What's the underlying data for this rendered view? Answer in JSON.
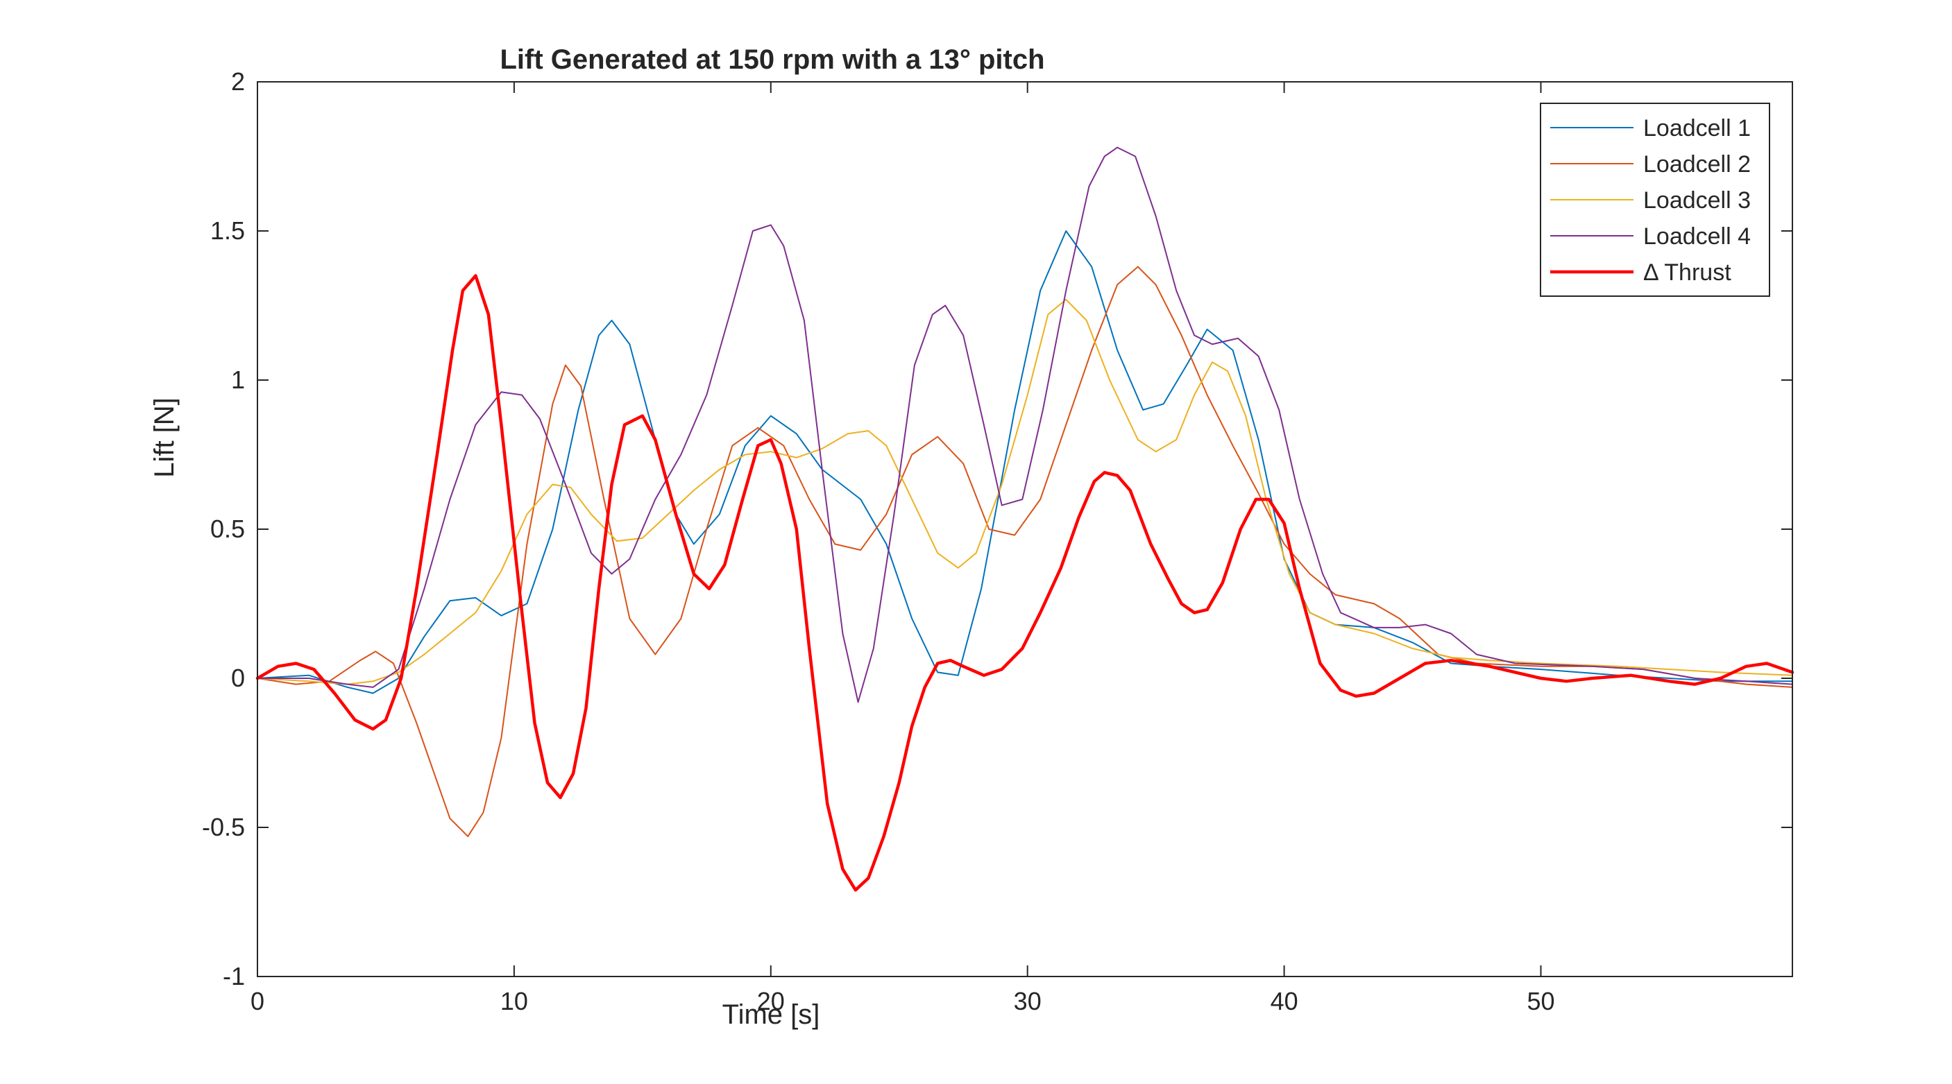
{
  "chart_data": {
    "type": "line",
    "title": "Lift Generated at 150 rpm with a 13° pitch",
    "xlabel": "Time [s]",
    "ylabel": "Lift [N]",
    "xlim": [
      0,
      59.8
    ],
    "ylim": [
      -1,
      2
    ],
    "xticks": [
      0,
      10,
      20,
      30,
      40,
      50
    ],
    "yticks": [
      -1,
      -0.5,
      0,
      0.5,
      1,
      1.5,
      2
    ],
    "xtick_labels": [
      "0",
      "10",
      "20",
      "30",
      "40",
      "50"
    ],
    "ytick_labels": [
      "-1",
      "-0.5",
      "0",
      "0.5",
      "1",
      "1.5",
      "2"
    ],
    "grid": false,
    "legend_position": "top-right",
    "series": [
      {
        "name": "Loadcell 1",
        "color": "#0072BD",
        "width": 2,
        "points": [
          [
            0,
            0
          ],
          [
            2,
            0.01
          ],
          [
            3.5,
            -0.03
          ],
          [
            4.5,
            -0.05
          ],
          [
            5.5,
            0.0
          ],
          [
            6.5,
            0.14
          ],
          [
            7.5,
            0.26
          ],
          [
            8.5,
            0.27
          ],
          [
            9.5,
            0.21
          ],
          [
            10.5,
            0.25
          ],
          [
            11.5,
            0.5
          ],
          [
            12.5,
            0.9
          ],
          [
            13.3,
            1.15
          ],
          [
            13.8,
            1.2
          ],
          [
            14.5,
            1.12
          ],
          [
            15.5,
            0.8
          ],
          [
            16.3,
            0.55
          ],
          [
            17,
            0.45
          ],
          [
            18,
            0.55
          ],
          [
            19,
            0.78
          ],
          [
            20,
            0.88
          ],
          [
            21,
            0.82
          ],
          [
            22,
            0.7
          ],
          [
            23.5,
            0.6
          ],
          [
            24.5,
            0.45
          ],
          [
            25.5,
            0.2
          ],
          [
            26.5,
            0.02
          ],
          [
            27.3,
            0.01
          ],
          [
            28.2,
            0.3
          ],
          [
            29.5,
            0.9
          ],
          [
            30.5,
            1.3
          ],
          [
            31.5,
            1.5
          ],
          [
            32.5,
            1.38
          ],
          [
            33.5,
            1.1
          ],
          [
            34.5,
            0.9
          ],
          [
            35.3,
            0.92
          ],
          [
            36.2,
            1.05
          ],
          [
            37,
            1.17
          ],
          [
            38,
            1.1
          ],
          [
            39,
            0.8
          ],
          [
            40,
            0.4
          ],
          [
            41,
            0.22
          ],
          [
            42,
            0.18
          ],
          [
            43.5,
            0.17
          ],
          [
            45,
            0.12
          ],
          [
            46.5,
            0.05
          ],
          [
            48,
            0.04
          ],
          [
            50,
            0.03
          ],
          [
            53,
            0.01
          ],
          [
            55,
            0.0
          ],
          [
            57,
            -0.01
          ],
          [
            59.8,
            -0.01
          ]
        ]
      },
      {
        "name": "Loadcell 2",
        "color": "#D95319",
        "width": 2,
        "points": [
          [
            0,
            0
          ],
          [
            1.5,
            -0.02
          ],
          [
            2.8,
            -0.01
          ],
          [
            4,
            0.06
          ],
          [
            4.6,
            0.09
          ],
          [
            5.3,
            0.05
          ],
          [
            6.2,
            -0.15
          ],
          [
            7.5,
            -0.47
          ],
          [
            8.2,
            -0.53
          ],
          [
            8.8,
            -0.45
          ],
          [
            9.5,
            -0.2
          ],
          [
            10.5,
            0.45
          ],
          [
            11.5,
            0.92
          ],
          [
            12,
            1.05
          ],
          [
            12.6,
            0.98
          ],
          [
            13.5,
            0.6
          ],
          [
            14.5,
            0.2
          ],
          [
            15.5,
            0.08
          ],
          [
            16.5,
            0.2
          ],
          [
            17.5,
            0.5
          ],
          [
            18.5,
            0.78
          ],
          [
            19.5,
            0.84
          ],
          [
            20.5,
            0.78
          ],
          [
            21.5,
            0.6
          ],
          [
            22.5,
            0.45
          ],
          [
            23.5,
            0.43
          ],
          [
            24.5,
            0.55
          ],
          [
            25.5,
            0.75
          ],
          [
            26.5,
            0.81
          ],
          [
            27.5,
            0.72
          ],
          [
            28.5,
            0.5
          ],
          [
            29.5,
            0.48
          ],
          [
            30.5,
            0.6
          ],
          [
            31.5,
            0.85
          ],
          [
            32.5,
            1.1
          ],
          [
            33.5,
            1.32
          ],
          [
            34.3,
            1.38
          ],
          [
            35,
            1.32
          ],
          [
            36,
            1.15
          ],
          [
            37,
            0.95
          ],
          [
            38,
            0.78
          ],
          [
            39,
            0.62
          ],
          [
            40,
            0.45
          ],
          [
            41,
            0.35
          ],
          [
            42,
            0.28
          ],
          [
            43.5,
            0.25
          ],
          [
            44.5,
            0.2
          ],
          [
            46,
            0.08
          ],
          [
            47.5,
            0.05
          ],
          [
            50,
            0.04
          ],
          [
            52,
            0.04
          ],
          [
            54,
            0.03
          ],
          [
            56,
            0.0
          ],
          [
            58,
            -0.02
          ],
          [
            59.8,
            -0.03
          ]
        ]
      },
      {
        "name": "Loadcell 3",
        "color": "#EDB120",
        "width": 2,
        "points": [
          [
            0,
            0
          ],
          [
            2,
            -0.01
          ],
          [
            3.5,
            -0.02
          ],
          [
            4.5,
            -0.01
          ],
          [
            5.5,
            0.02
          ],
          [
            6.5,
            0.08
          ],
          [
            7.5,
            0.15
          ],
          [
            8.5,
            0.22
          ],
          [
            9.5,
            0.36
          ],
          [
            10.5,
            0.55
          ],
          [
            11.5,
            0.65
          ],
          [
            12.2,
            0.64
          ],
          [
            13,
            0.55
          ],
          [
            14,
            0.46
          ],
          [
            15,
            0.47
          ],
          [
            16,
            0.55
          ],
          [
            17,
            0.63
          ],
          [
            18,
            0.7
          ],
          [
            19,
            0.75
          ],
          [
            20,
            0.76
          ],
          [
            21,
            0.74
          ],
          [
            22,
            0.77
          ],
          [
            23,
            0.82
          ],
          [
            23.8,
            0.83
          ],
          [
            24.5,
            0.78
          ],
          [
            25.5,
            0.6
          ],
          [
            26.5,
            0.42
          ],
          [
            27.3,
            0.37
          ],
          [
            28,
            0.42
          ],
          [
            29,
            0.65
          ],
          [
            30,
            0.95
          ],
          [
            30.8,
            1.22
          ],
          [
            31.5,
            1.27
          ],
          [
            32.3,
            1.2
          ],
          [
            33.2,
            1.0
          ],
          [
            34.3,
            0.8
          ],
          [
            35,
            0.76
          ],
          [
            35.8,
            0.8
          ],
          [
            36.5,
            0.95
          ],
          [
            37.2,
            1.06
          ],
          [
            37.8,
            1.03
          ],
          [
            38.5,
            0.88
          ],
          [
            39.3,
            0.6
          ],
          [
            40.2,
            0.35
          ],
          [
            41,
            0.22
          ],
          [
            42,
            0.18
          ],
          [
            43.5,
            0.15
          ],
          [
            45,
            0.1
          ],
          [
            46.5,
            0.07
          ],
          [
            48,
            0.06
          ],
          [
            50,
            0.05
          ],
          [
            53,
            0.04
          ],
          [
            55,
            0.03
          ],
          [
            57,
            0.02
          ],
          [
            59.8,
            0.01
          ]
        ]
      },
      {
        "name": "Loadcell 4",
        "color": "#7E2F8E",
        "width": 2,
        "points": [
          [
            0,
            0
          ],
          [
            2,
            0.0
          ],
          [
            3.5,
            -0.02
          ],
          [
            4.5,
            -0.03
          ],
          [
            5.5,
            0.03
          ],
          [
            6.5,
            0.3
          ],
          [
            7.5,
            0.6
          ],
          [
            8.5,
            0.85
          ],
          [
            9.5,
            0.96
          ],
          [
            10.3,
            0.95
          ],
          [
            11,
            0.87
          ],
          [
            12,
            0.65
          ],
          [
            13,
            0.42
          ],
          [
            13.8,
            0.35
          ],
          [
            14.5,
            0.4
          ],
          [
            15.5,
            0.6
          ],
          [
            16.5,
            0.75
          ],
          [
            17.5,
            0.95
          ],
          [
            18.5,
            1.25
          ],
          [
            19.3,
            1.5
          ],
          [
            20,
            1.52
          ],
          [
            20.5,
            1.45
          ],
          [
            21.3,
            1.2
          ],
          [
            22,
            0.7
          ],
          [
            22.8,
            0.15
          ],
          [
            23.4,
            -0.08
          ],
          [
            24,
            0.1
          ],
          [
            24.8,
            0.55
          ],
          [
            25.6,
            1.05
          ],
          [
            26.3,
            1.22
          ],
          [
            26.8,
            1.25
          ],
          [
            27.5,
            1.15
          ],
          [
            28.3,
            0.85
          ],
          [
            29,
            0.58
          ],
          [
            29.8,
            0.6
          ],
          [
            30.6,
            0.9
          ],
          [
            31.5,
            1.3
          ],
          [
            32.4,
            1.65
          ],
          [
            33,
            1.75
          ],
          [
            33.5,
            1.78
          ],
          [
            34.2,
            1.75
          ],
          [
            35,
            1.55
          ],
          [
            35.8,
            1.3
          ],
          [
            36.5,
            1.15
          ],
          [
            37.2,
            1.12
          ],
          [
            38.2,
            1.14
          ],
          [
            39,
            1.08
          ],
          [
            39.8,
            0.9
          ],
          [
            40.6,
            0.6
          ],
          [
            41.5,
            0.35
          ],
          [
            42.2,
            0.22
          ],
          [
            43.5,
            0.17
          ],
          [
            44.5,
            0.17
          ],
          [
            45.5,
            0.18
          ],
          [
            46.5,
            0.15
          ],
          [
            47.5,
            0.08
          ],
          [
            49,
            0.05
          ],
          [
            52,
            0.04
          ],
          [
            54,
            0.03
          ],
          [
            56,
            0.0
          ],
          [
            58,
            -0.01
          ],
          [
            59.8,
            -0.02
          ]
        ]
      },
      {
        "name": "Δ Thrust",
        "color": "#FF0000",
        "width": 4.5,
        "points": [
          [
            0,
            0
          ],
          [
            0.8,
            0.04
          ],
          [
            1.5,
            0.05
          ],
          [
            2.2,
            0.03
          ],
          [
            3,
            -0.05
          ],
          [
            3.8,
            -0.14
          ],
          [
            4.5,
            -0.17
          ],
          [
            5,
            -0.14
          ],
          [
            5.6,
            0.0
          ],
          [
            6.2,
            0.3
          ],
          [
            7,
            0.75
          ],
          [
            7.6,
            1.1
          ],
          [
            8,
            1.3
          ],
          [
            8.5,
            1.35
          ],
          [
            9,
            1.22
          ],
          [
            9.5,
            0.85
          ],
          [
            10.2,
            0.3
          ],
          [
            10.8,
            -0.15
          ],
          [
            11.3,
            -0.35
          ],
          [
            11.8,
            -0.4
          ],
          [
            12.3,
            -0.32
          ],
          [
            12.8,
            -0.1
          ],
          [
            13.3,
            0.3
          ],
          [
            13.8,
            0.65
          ],
          [
            14.3,
            0.85
          ],
          [
            15,
            0.88
          ],
          [
            15.5,
            0.8
          ],
          [
            16.3,
            0.55
          ],
          [
            17,
            0.35
          ],
          [
            17.6,
            0.3
          ],
          [
            18.2,
            0.38
          ],
          [
            18.9,
            0.6
          ],
          [
            19.5,
            0.78
          ],
          [
            20,
            0.8
          ],
          [
            20.4,
            0.72
          ],
          [
            21,
            0.5
          ],
          [
            21.5,
            0.1
          ],
          [
            22.2,
            -0.42
          ],
          [
            22.8,
            -0.64
          ],
          [
            23.3,
            -0.71
          ],
          [
            23.8,
            -0.67
          ],
          [
            24.4,
            -0.53
          ],
          [
            25,
            -0.35
          ],
          [
            25.5,
            -0.16
          ],
          [
            26,
            -0.03
          ],
          [
            26.5,
            0.05
          ],
          [
            27,
            0.06
          ],
          [
            27.5,
            0.04
          ],
          [
            28.3,
            0.01
          ],
          [
            29,
            0.03
          ],
          [
            29.8,
            0.1
          ],
          [
            30.5,
            0.22
          ],
          [
            31.3,
            0.37
          ],
          [
            32,
            0.54
          ],
          [
            32.6,
            0.66
          ],
          [
            33,
            0.69
          ],
          [
            33.5,
            0.68
          ],
          [
            34,
            0.63
          ],
          [
            34.8,
            0.45
          ],
          [
            35.5,
            0.33
          ],
          [
            36,
            0.25
          ],
          [
            36.5,
            0.22
          ],
          [
            37,
            0.23
          ],
          [
            37.6,
            0.32
          ],
          [
            38.3,
            0.5
          ],
          [
            38.9,
            0.6
          ],
          [
            39.4,
            0.6
          ],
          [
            40,
            0.52
          ],
          [
            40.6,
            0.3
          ],
          [
            41.4,
            0.05
          ],
          [
            42.2,
            -0.04
          ],
          [
            42.8,
            -0.06
          ],
          [
            43.5,
            -0.05
          ],
          [
            44.5,
            0.0
          ],
          [
            45.5,
            0.05
          ],
          [
            46.5,
            0.06
          ],
          [
            48,
            0.04
          ],
          [
            50,
            0.0
          ],
          [
            51,
            -0.01
          ],
          [
            52,
            0.0
          ],
          [
            53.5,
            0.01
          ],
          [
            55,
            -0.01
          ],
          [
            56,
            -0.02
          ],
          [
            57,
            0.0
          ],
          [
            58,
            0.04
          ],
          [
            58.8,
            0.05
          ],
          [
            59.8,
            0.02
          ]
        ]
      }
    ]
  }
}
